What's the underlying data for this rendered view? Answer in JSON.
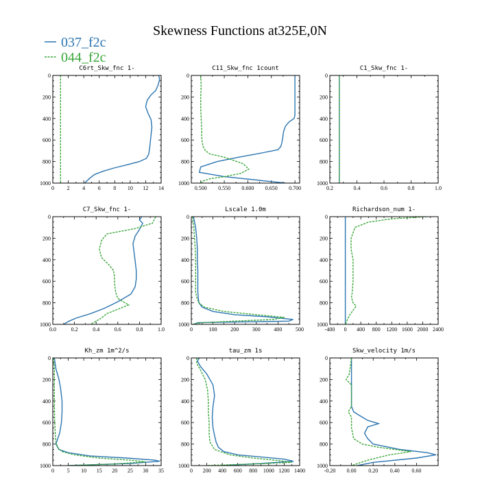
{
  "title": "Skewness Functions at325E,0N",
  "legend": [
    {
      "label": "037_f2c",
      "color": "#2a74b0",
      "dashed": false
    },
    {
      "label": "044_f2c",
      "color": "#3aa63a",
      "dashed": true
    }
  ],
  "colors": {
    "series1": "#2a74b0",
    "series2": "#3aa63a"
  },
  "chart_data": [
    {
      "type": "line",
      "title": "C6rt_Skw_fnc  1-",
      "xlim": [
        0,
        14
      ],
      "ylim": [
        1000,
        0
      ],
      "xticks": [
        0,
        2,
        4,
        6,
        8,
        10,
        12,
        14
      ],
      "xticklabels": [
        "0",
        "2",
        "4",
        "6",
        "8",
        "10",
        "12",
        "14"
      ],
      "yticks": [
        0,
        200,
        400,
        600,
        800,
        1000
      ],
      "yticklabels": [
        "0",
        "200",
        "400",
        "600",
        "800",
        "1000"
      ],
      "series": [
        {
          "name": "037_f2c",
          "x": [
            13.7,
            13.8,
            13.6,
            13.3,
            12.7,
            12.2,
            12.0,
            12.3,
            12.7,
            12.8,
            12.7,
            12.6,
            12.5,
            12.4,
            12.1,
            11.2,
            9.6,
            7.9,
            6.5,
            5.4,
            4.7,
            4.1
          ],
          "y": [
            0,
            40,
            90,
            140,
            180,
            230,
            290,
            350,
            410,
            480,
            550,
            620,
            680,
            730,
            770,
            800,
            830,
            860,
            890,
            920,
            960,
            1000
          ]
        },
        {
          "name": "044_f2c",
          "x": [
            1.0,
            1.0,
            1.0,
            1.0,
            1.0,
            1.0
          ],
          "y": [
            0,
            200,
            400,
            600,
            800,
            1000
          ]
        }
      ]
    },
    {
      "type": "line",
      "title": "C11_Skw_fnc  1count",
      "xlim": [
        0.48,
        0.71
      ],
      "ylim": [
        1000,
        0
      ],
      "xticks": [
        0.5,
        0.55,
        0.6,
        0.65,
        0.7
      ],
      "xticklabels": [
        "0.500",
        "0.550",
        "0.600",
        "0.650",
        "0.700"
      ],
      "yticks": [
        0,
        200,
        400,
        600,
        800,
        1000
      ],
      "yticklabels": [
        "0",
        "200",
        "400",
        "600",
        "800",
        "1000"
      ],
      "series": [
        {
          "name": "037_f2c",
          "x": [
            0.7,
            0.7,
            0.7,
            0.7,
            0.7,
            0.698,
            0.688,
            0.68,
            0.676,
            0.674,
            0.672,
            0.67,
            0.664,
            0.63,
            0.58,
            0.535,
            0.5,
            0.497,
            0.55,
            0.68
          ],
          "y": [
            0,
            100,
            200,
            300,
            370,
            400,
            430,
            470,
            520,
            580,
            630,
            660,
            690,
            720,
            760,
            800,
            850,
            900,
            940,
            1000
          ]
        },
        {
          "name": "044_f2c",
          "x": [
            0.5,
            0.501,
            0.5,
            0.5,
            0.501,
            0.502,
            0.502,
            0.503,
            0.505,
            0.51,
            0.52,
            0.55,
            0.59,
            0.602,
            0.585,
            0.55,
            0.52,
            0.505,
            0.5
          ],
          "y": [
            0,
            100,
            200,
            300,
            400,
            500,
            560,
            620,
            660,
            700,
            730,
            760,
            820,
            870,
            910,
            940,
            960,
            980,
            1000
          ]
        }
      ]
    },
    {
      "type": "line",
      "title": "C1_Skw_fnc  1-",
      "xlim": [
        0.2,
        1.0
      ],
      "ylim": [
        1000,
        0
      ],
      "xticks": [
        0.2,
        0.4,
        0.6,
        0.8,
        1.0
      ],
      "xticklabels": [
        "0.2",
        "0.4",
        "0.6",
        "0.8",
        "1.0"
      ],
      "yticks": [
        0,
        200,
        400,
        600,
        800,
        1000
      ],
      "yticklabels": [
        "0",
        "200",
        "400",
        "600",
        "800",
        "1000"
      ],
      "series": [
        {
          "name": "037_f2c",
          "x": [
            0.27,
            0.27,
            0.27,
            0.27,
            0.27,
            0.27
          ],
          "y": [
            0,
            200,
            400,
            600,
            800,
            1000
          ]
        },
        {
          "name": "044_f2c",
          "x": [
            0.27,
            0.27,
            0.27,
            0.27,
            0.27,
            0.27
          ],
          "y": [
            0,
            200,
            400,
            600,
            800,
            1000
          ]
        }
      ]
    },
    {
      "type": "line",
      "title": "C7_Skw_fnc  1-",
      "xlim": [
        0.0,
        1.0
      ],
      "ylim": [
        1000,
        0
      ],
      "xticks": [
        0.0,
        0.2,
        0.4,
        0.6,
        0.8,
        1.0
      ],
      "xticklabels": [
        "0.0",
        "0.2",
        "0.4",
        "0.6",
        "0.8",
        "1.0"
      ],
      "yticks": [
        0,
        200,
        400,
        600,
        800,
        1000
      ],
      "yticklabels": [
        "0",
        "200",
        "400",
        "600",
        "800",
        "1000"
      ],
      "series": [
        {
          "name": "037_f2c",
          "x": [
            0.82,
            0.8,
            0.83,
            0.8,
            0.76,
            0.74,
            0.75,
            0.76,
            0.77,
            0.77,
            0.76,
            0.72,
            0.6,
            0.48,
            0.35,
            0.22,
            0.15,
            0.1
          ],
          "y": [
            0,
            30,
            60,
            120,
            180,
            250,
            330,
            410,
            500,
            580,
            650,
            720,
            790,
            850,
            900,
            940,
            970,
            1000
          ]
        },
        {
          "name": "044_f2c",
          "x": [
            0.95,
            0.92,
            0.76,
            0.5,
            0.45,
            0.43,
            0.45,
            0.52,
            0.56,
            0.57,
            0.57,
            0.58,
            0.6,
            0.7,
            0.6,
            0.5,
            0.45,
            0.35
          ],
          "y": [
            0,
            60,
            110,
            160,
            220,
            300,
            380,
            450,
            500,
            560,
            620,
            700,
            760,
            820,
            860,
            900,
            940,
            1000
          ]
        }
      ]
    },
    {
      "type": "line",
      "title": "Lscale  1.0m",
      "xlim": [
        0,
        500
      ],
      "ylim": [
        1000,
        0
      ],
      "xticks": [
        0,
        100,
        200,
        300,
        400,
        500
      ],
      "xticklabels": [
        "0",
        "100",
        "200",
        "300",
        "400",
        "500"
      ],
      "yticks": [
        0,
        200,
        400,
        600,
        800,
        1000
      ],
      "yticklabels": [
        "0",
        "200",
        "400",
        "600",
        "800",
        "1000"
      ],
      "series": [
        {
          "name": "037_f2c",
          "x": [
            10,
            20,
            25,
            28,
            28,
            30,
            30,
            30,
            32,
            35,
            50,
            100,
            200,
            350,
            470,
            450,
            30,
            10
          ],
          "y": [
            0,
            100,
            200,
            300,
            400,
            500,
            600,
            700,
            750,
            800,
            840,
            880,
            910,
            930,
            955,
            970,
            985,
            1000
          ]
        },
        {
          "name": "044_f2c",
          "x": [
            5,
            12,
            15,
            18,
            20,
            20,
            20,
            20,
            25,
            35,
            60,
            150,
            300,
            430,
            380,
            200,
            50,
            5
          ],
          "y": [
            0,
            100,
            200,
            300,
            400,
            500,
            600,
            700,
            750,
            800,
            840,
            880,
            910,
            935,
            955,
            970,
            985,
            1000
          ]
        }
      ]
    },
    {
      "type": "line",
      "title": "Richardson_num  1-",
      "xlim": [
        -400,
        2400
      ],
      "ylim": [
        1000,
        0
      ],
      "xticks": [
        -400,
        0,
        400,
        800,
        1200,
        1600,
        2000,
        2400
      ],
      "xticklabels": [
        "-400",
        "0",
        "400",
        "800",
        "1200",
        "1600",
        "2000",
        "2400"
      ],
      "yticks": [
        0,
        200,
        400,
        600,
        800,
        1000
      ],
      "yticklabels": [
        "0",
        "200",
        "400",
        "600",
        "800",
        "1000"
      ],
      "series": [
        {
          "name": "037_f2c",
          "x": [
            0,
            0,
            0,
            0,
            0,
            0
          ],
          "y": [
            0,
            200,
            400,
            600,
            800,
            1000
          ]
        },
        {
          "name": "044_f2c",
          "x": [
            2100,
            1200,
            600,
            250,
            150,
            150,
            200,
            200,
            200,
            180,
            160,
            200,
            280,
            200,
            100,
            50,
            0
          ],
          "y": [
            0,
            20,
            50,
            100,
            200,
            300,
            400,
            500,
            600,
            700,
            750,
            800,
            830,
            870,
            920,
            960,
            1000
          ]
        }
      ]
    },
    {
      "type": "line",
      "title": "Kh_zm  1m^2/s",
      "xlim": [
        0,
        35
      ],
      "ylim": [
        1000,
        0
      ],
      "xticks": [
        0,
        5,
        10,
        15,
        20,
        25,
        30,
        35
      ],
      "xticklabels": [
        "0",
        "5",
        "10",
        "15",
        "20",
        "25",
        "30",
        "35"
      ],
      "yticks": [
        0,
        200,
        400,
        600,
        800,
        1000
      ],
      "yticklabels": [
        "0",
        "200",
        "400",
        "600",
        "800",
        "1000"
      ],
      "series": [
        {
          "name": "037_f2c",
          "x": [
            0.5,
            1.0,
            1.5,
            2.0,
            2.5,
            2.8,
            3.0,
            3.0,
            2.8,
            2.2,
            1.0,
            2.0,
            5.0,
            12.0,
            24.0,
            33.0,
            34.5,
            25.0,
            5.0
          ],
          "y": [
            0,
            100,
            150,
            200,
            280,
            350,
            400,
            500,
            600,
            700,
            800,
            850,
            880,
            910,
            930,
            950,
            960,
            980,
            1000
          ]
        },
        {
          "name": "044_f2c",
          "x": [
            0.2,
            0.5,
            0.5,
            0.5,
            0.6,
            0.8,
            1.0,
            1.5,
            3.0,
            7.0,
            15.0,
            25.0,
            30.0,
            20.0,
            5.0
          ],
          "y": [
            0,
            100,
            200,
            400,
            600,
            700,
            780,
            830,
            870,
            900,
            930,
            950,
            965,
            985,
            1000
          ]
        }
      ]
    },
    {
      "type": "line",
      "title": "tau_zm  1s",
      "xlim": [
        0,
        1400
      ],
      "ylim": [
        1000,
        0
      ],
      "xticks": [
        0,
        200,
        400,
        600,
        800,
        1000,
        1200,
        1400
      ],
      "xticklabels": [
        "0",
        "200",
        "400",
        "600",
        "800",
        "1000",
        "1200",
        "1400"
      ],
      "yticks": [
        0,
        200,
        400,
        600,
        800,
        1000
      ],
      "yticklabels": [
        "0",
        "200",
        "400",
        "600",
        "800",
        "1000"
      ],
      "series": [
        {
          "name": "037_f2c",
          "x": [
            100,
            80,
            120,
            200,
            280,
            300,
            280,
            270,
            280,
            300,
            320,
            350,
            420,
            600,
            900,
            1200,
            1320,
            900,
            400
          ],
          "y": [
            0,
            30,
            80,
            150,
            250,
            350,
            450,
            550,
            650,
            720,
            780,
            830,
            870,
            900,
            920,
            940,
            960,
            980,
            1000
          ]
        },
        {
          "name": "044_f2c",
          "x": [
            70,
            70,
            110,
            180,
            210,
            220,
            220,
            230,
            230,
            240,
            300,
            500,
            800,
            1150,
            1300,
            800,
            200
          ],
          "y": [
            0,
            50,
            100,
            200,
            300,
            400,
            500,
            600,
            700,
            780,
            850,
            900,
            930,
            955,
            970,
            985,
            1000
          ]
        }
      ]
    },
    {
      "type": "line",
      "title": "Skw_velocity  1m/s",
      "xlim": [
        -0.2,
        0.8
      ],
      "ylim": [
        1000,
        0
      ],
      "xticks": [
        -0.2,
        0.0,
        0.2,
        0.4,
        0.6
      ],
      "xticklabels": [
        "-0.20",
        "0.00",
        "0.20",
        "0.40",
        "0.60"
      ],
      "yticks": [
        0,
        200,
        400,
        600,
        800,
        1000
      ],
      "yticklabels": [
        "0",
        "200",
        "400",
        "600",
        "800",
        "1000"
      ],
      "series": [
        {
          "name": "037_f2c",
          "x": [
            0.0,
            0.0,
            0.0,
            0.0,
            0.0,
            0.02,
            0.05,
            0.1,
            0.15,
            0.25,
            0.15,
            0.12,
            0.15,
            0.2,
            0.45,
            0.7,
            0.78,
            0.6,
            0.2,
            0.05
          ],
          "y": [
            0,
            100,
            200,
            350,
            450,
            500,
            520,
            550,
            580,
            610,
            640,
            700,
            750,
            800,
            850,
            880,
            900,
            930,
            970,
            1000
          ]
        },
        {
          "name": "044_f2c",
          "x": [
            0.0,
            -0.02,
            -0.05,
            0.0,
            0.0,
            0.0,
            -0.03,
            0.0,
            0.0,
            0.02,
            0.1,
            0.25,
            0.4,
            0.55,
            0.35,
            0.15,
            0.0
          ],
          "y": [
            0,
            150,
            200,
            250,
            350,
            450,
            500,
            550,
            650,
            750,
            800,
            830,
            850,
            870,
            900,
            950,
            1000
          ]
        }
      ]
    }
  ]
}
